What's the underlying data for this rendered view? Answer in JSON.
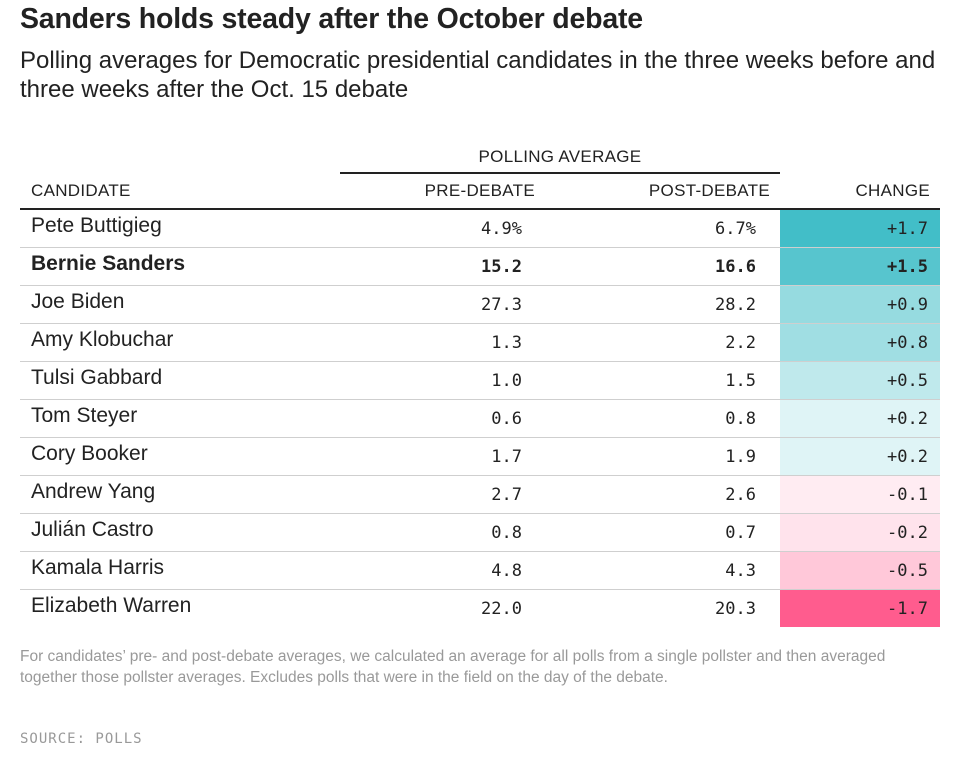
{
  "header": {
    "title": "Sanders holds steady after the October debate",
    "subtitle": "Polling averages for Democratic presidential candidates in the three weeks before and three weeks after the Oct. 15 debate"
  },
  "chart_data": {
    "type": "table",
    "group_header": "POLLING AVERAGE",
    "columns": [
      "CANDIDATE",
      "PRE-DEBATE",
      "POST-DEBATE",
      "CHANGE"
    ],
    "rows": [
      {
        "candidate": "Pete Buttigieg",
        "pre": "4.9%",
        "post": "6.7%",
        "change": "+1.7",
        "change_value": 1.7,
        "highlight": false
      },
      {
        "candidate": "Bernie Sanders",
        "pre": "15.2",
        "post": "16.6",
        "change": "+1.5",
        "change_value": 1.5,
        "highlight": true
      },
      {
        "candidate": "Joe Biden",
        "pre": "27.3",
        "post": "28.2",
        "change": "+0.9",
        "change_value": 0.9,
        "highlight": false
      },
      {
        "candidate": "Amy Klobuchar",
        "pre": "1.3",
        "post": "2.2",
        "change": "+0.8",
        "change_value": 0.8,
        "highlight": false
      },
      {
        "candidate": "Tulsi Gabbard",
        "pre": "1.0",
        "post": "1.5",
        "change": "+0.5",
        "change_value": 0.5,
        "highlight": false
      },
      {
        "candidate": "Tom Steyer",
        "pre": "0.6",
        "post": "0.8",
        "change": "+0.2",
        "change_value": 0.2,
        "highlight": false
      },
      {
        "candidate": "Cory Booker",
        "pre": "1.7",
        "post": "1.9",
        "change": "+0.2",
        "change_value": 0.2,
        "highlight": false
      },
      {
        "candidate": "Andrew Yang",
        "pre": "2.7",
        "post": "2.6",
        "change": "-0.1",
        "change_value": -0.1,
        "highlight": false
      },
      {
        "candidate": "Julián Castro",
        "pre": "0.8",
        "post": "0.7",
        "change": "-0.2",
        "change_value": -0.2,
        "highlight": false
      },
      {
        "candidate": "Kamala Harris",
        "pre": "4.8",
        "post": "4.3",
        "change": "-0.5",
        "change_value": -0.5,
        "highlight": false
      },
      {
        "candidate": "Elizabeth Warren",
        "pre": "22.0",
        "post": "20.3",
        "change": "-1.7",
        "change_value": -1.7,
        "highlight": false
      }
    ],
    "colors": {
      "positive": "#42bec8",
      "negative": "#ff5c8e"
    }
  },
  "footer": {
    "note": "For candidates’ pre- and post-debate averages, we calculated an average for all polls from a single pollster and then averaged together those pollster averages. Excludes polls that were in the field on the day of the debate.",
    "source": "SOURCE: POLLS"
  }
}
